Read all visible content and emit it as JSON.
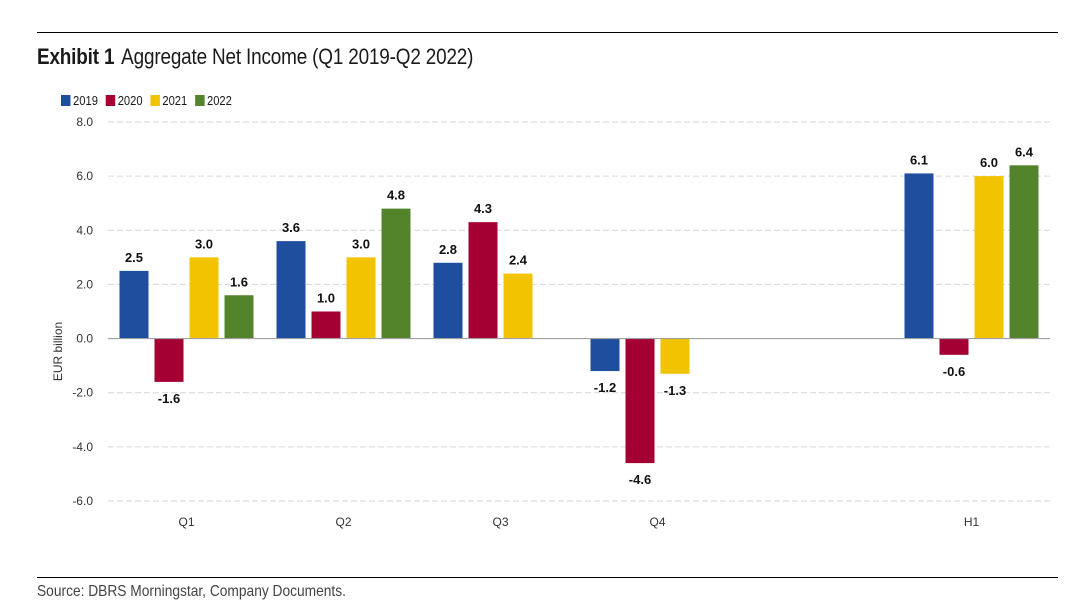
{
  "header": {
    "exhibit": "Exhibit 1",
    "title": "Aggregate Net Income (Q1 2019-Q2 2022)"
  },
  "footer": {
    "source": "Source: DBRS Morningstar, Company Documents."
  },
  "chart_data": {
    "type": "bar",
    "title": "Aggregate Net Income (Q1 2019-Q2 2022)",
    "xlabel": "",
    "ylabel": "EUR billion",
    "categories": [
      "Q1",
      "Q2",
      "Q3",
      "Q4",
      "",
      "H1"
    ],
    "ylim": [
      -6.0,
      8.0
    ],
    "yticks": [
      8.0,
      6.0,
      4.0,
      2.0,
      0.0,
      -2.0,
      -4.0,
      -6.0
    ],
    "ytick_labels": [
      "8.0",
      "6.0",
      "4.0",
      "2.0",
      "0.0",
      "-2.0",
      "-4.0",
      "-6.0"
    ],
    "grid": true,
    "legend_position": "top-left",
    "series": [
      {
        "name": "2019",
        "color": "#1f4e9e",
        "values": [
          2.5,
          3.6,
          2.8,
          -1.2,
          null,
          6.1
        ],
        "labels": [
          "2.5",
          "3.6",
          "2.8",
          "-1.2",
          null,
          "6.1"
        ]
      },
      {
        "name": "2020",
        "color": "#a50034",
        "values": [
          -1.6,
          1.0,
          4.3,
          -4.6,
          null,
          -0.6
        ],
        "labels": [
          "-1.6",
          "1.0",
          "4.3",
          "-4.6",
          null,
          "-0.6"
        ]
      },
      {
        "name": "2021",
        "color": "#f2c300",
        "values": [
          3.0,
          3.0,
          2.4,
          -1.3,
          null,
          6.0
        ],
        "labels": [
          "3.0",
          "3.0",
          "2.4",
          "-1.3",
          null,
          "6.0"
        ]
      },
      {
        "name": "2022",
        "color": "#53842c",
        "values": [
          1.6,
          4.8,
          null,
          null,
          null,
          6.4
        ],
        "labels": [
          "1.6",
          "4.8",
          null,
          null,
          null,
          "6.4"
        ]
      }
    ]
  }
}
